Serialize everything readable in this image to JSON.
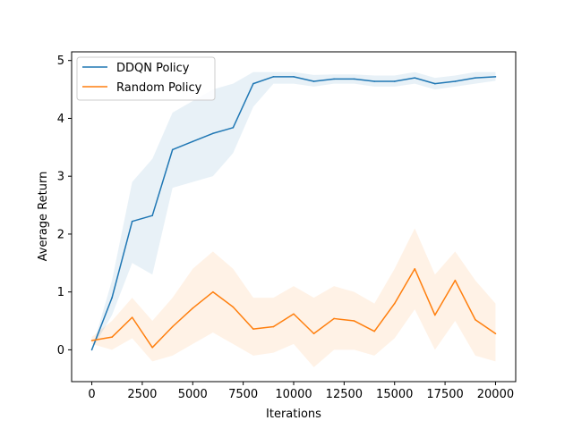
{
  "chart_data": {
    "type": "line",
    "title": "",
    "xlabel": "Iterations",
    "ylabel": "Average Return",
    "xlim": [
      -1000,
      21000
    ],
    "ylim": [
      -0.55,
      5.15
    ],
    "xticks": [
      0,
      2500,
      5000,
      7500,
      10000,
      12500,
      15000,
      17500,
      20000
    ],
    "yticks": [
      0,
      1,
      2,
      3,
      4,
      5
    ],
    "grid": false,
    "legend_position": "upper-left",
    "x": [
      0,
      1000,
      2000,
      3000,
      4000,
      5000,
      6000,
      7000,
      8000,
      9000,
      10000,
      11000,
      12000,
      13000,
      14000,
      15000,
      16000,
      17000,
      18000,
      19000,
      20000
    ],
    "series": [
      {
        "name": "DDQN Policy",
        "color": "#1f77b4",
        "values": [
          0.0,
          0.9,
          2.22,
          2.32,
          3.46,
          3.6,
          3.74,
          3.84,
          4.6,
          4.72,
          4.72,
          4.64,
          4.68,
          4.68,
          4.64,
          4.64,
          4.7,
          4.6,
          4.64,
          4.7,
          4.72
        ],
        "lower": [
          0.0,
          0.6,
          1.5,
          1.3,
          2.8,
          2.9,
          3.0,
          3.4,
          4.2,
          4.6,
          4.6,
          4.55,
          4.6,
          4.6,
          4.55,
          4.55,
          4.6,
          4.5,
          4.55,
          4.6,
          4.65
        ],
        "upper": [
          0.0,
          1.2,
          2.9,
          3.3,
          4.1,
          4.3,
          4.5,
          4.6,
          4.8,
          4.8,
          4.8,
          4.75,
          4.76,
          4.76,
          4.74,
          4.74,
          4.8,
          4.7,
          4.74,
          4.8,
          4.8
        ]
      },
      {
        "name": "Random Policy",
        "color": "#ff7f0e",
        "values": [
          0.16,
          0.22,
          0.56,
          0.04,
          0.4,
          0.72,
          1.0,
          0.74,
          0.36,
          0.4,
          0.62,
          0.28,
          0.54,
          0.5,
          0.32,
          0.8,
          1.4,
          0.6,
          1.2,
          0.52,
          0.28
        ],
        "lower": [
          0.1,
          0.0,
          0.2,
          -0.2,
          -0.1,
          0.1,
          0.3,
          0.1,
          -0.1,
          -0.05,
          0.1,
          -0.3,
          0.0,
          0.0,
          -0.1,
          0.2,
          0.7,
          0.0,
          0.5,
          -0.1,
          -0.2
        ],
        "upper": [
          0.22,
          0.5,
          0.9,
          0.5,
          0.9,
          1.4,
          1.7,
          1.4,
          0.9,
          0.9,
          1.1,
          0.9,
          1.1,
          1.0,
          0.8,
          1.4,
          2.1,
          1.3,
          1.7,
          1.2,
          0.8
        ]
      }
    ]
  }
}
